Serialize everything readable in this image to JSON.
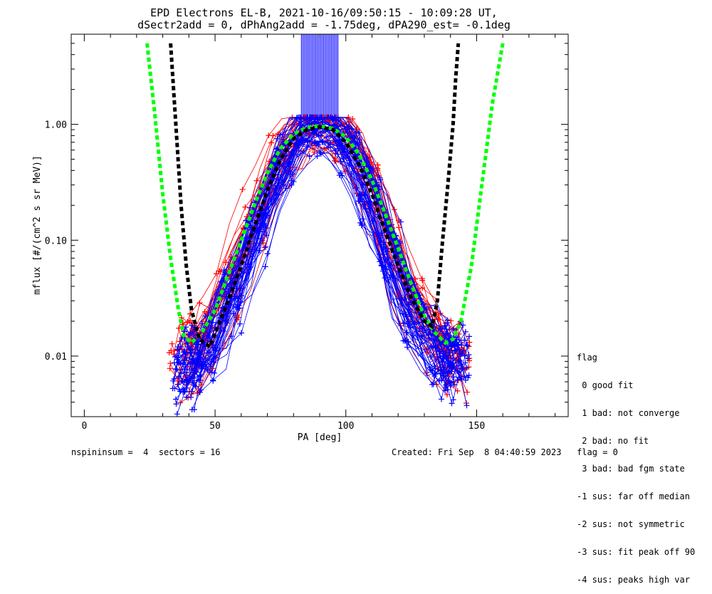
{
  "chart_data": {
    "type": "line",
    "title": "EPD Electrons EL-B, 2021-10-16/09:50:15 - 10:09:28 UT,",
    "subtitle": "dSectr2add = 0, dPhAng2add = -1.75deg, dPA290_est=  -0.1deg",
    "xlabel": "PA [deg]",
    "ylabel": "mflux [#/(cm^2 s sr MeV)]",
    "xlim": [
      -5,
      185
    ],
    "ylim": [
      0.003,
      6
    ],
    "yscale": "log",
    "x_ticks": [
      0,
      50,
      100,
      150
    ],
    "x_tick_labels": [
      "0",
      "50",
      "100",
      "150"
    ],
    "y_ticks": [
      0.01,
      0.1,
      1.0
    ],
    "y_tick_labels": [
      "0.01",
      "0.10",
      "1.00"
    ],
    "series": [
      {
        "name": "model green",
        "color": "#00ff00",
        "style": "dashed",
        "x": [
          24,
          27,
          30,
          33,
          36,
          38,
          41,
          45,
          50,
          55,
          60,
          65,
          70,
          75,
          80,
          85,
          90,
          95,
          100,
          105,
          110,
          115,
          120,
          125,
          130,
          134,
          138,
          141,
          144,
          148,
          152,
          156,
          160
        ],
        "y": [
          5.0,
          1.2,
          0.25,
          0.07,
          0.025,
          0.015,
          0.013,
          0.016,
          0.025,
          0.05,
          0.1,
          0.2,
          0.38,
          0.62,
          0.82,
          0.94,
          0.97,
          0.92,
          0.78,
          0.55,
          0.33,
          0.17,
          0.085,
          0.042,
          0.022,
          0.016,
          0.013,
          0.014,
          0.02,
          0.06,
          0.3,
          1.5,
          5.0
        ]
      },
      {
        "name": "model black",
        "color": "#000000",
        "style": "dashed",
        "x": [
          33,
          35,
          37,
          39,
          41,
          44,
          48,
          55,
          60,
          65,
          70,
          75,
          80,
          85,
          90,
          95,
          100,
          105,
          110,
          115,
          120,
          125,
          130,
          133,
          135,
          137,
          139,
          141,
          142,
          143
        ],
        "y": [
          5.0,
          1.0,
          0.2,
          0.06,
          0.025,
          0.014,
          0.012,
          0.03,
          0.06,
          0.13,
          0.27,
          0.5,
          0.75,
          0.9,
          0.95,
          0.9,
          0.7,
          0.45,
          0.25,
          0.12,
          0.06,
          0.032,
          0.02,
          0.018,
          0.03,
          0.1,
          0.3,
          1.0,
          2.5,
          5.0
        ]
      },
      {
        "name": "red sweeps",
        "color": "#ff0000",
        "style": "solid",
        "x": [
          37,
          40,
          45,
          50,
          55,
          60,
          65,
          70,
          75,
          80,
          84,
          88,
          92,
          96,
          100,
          104,
          108,
          112,
          116,
          120,
          125,
          130,
          135,
          139,
          143
        ],
        "y": [
          0.009,
          0.01,
          0.013,
          0.022,
          0.04,
          0.08,
          0.16,
          0.3,
          0.5,
          0.72,
          0.85,
          0.9,
          0.92,
          0.88,
          0.7,
          0.5,
          0.32,
          0.18,
          0.1,
          0.055,
          0.03,
          0.018,
          0.012,
          0.01,
          0.009
        ]
      },
      {
        "name": "blue sweeps",
        "color": "#0000ff",
        "style": "solid",
        "x": [
          38,
          41,
          46,
          51,
          56,
          61,
          66,
          71,
          76,
          81,
          85,
          89,
          93,
          97,
          101,
          105,
          109,
          113,
          117,
          121,
          126,
          131,
          136,
          140,
          143
        ],
        "y": [
          0.0075,
          0.0085,
          0.011,
          0.017,
          0.032,
          0.06,
          0.12,
          0.24,
          0.45,
          0.75,
          0.95,
          1.0,
          0.95,
          0.85,
          0.62,
          0.42,
          0.25,
          0.14,
          0.075,
          0.04,
          0.022,
          0.014,
          0.011,
          0.0095,
          0.009
        ]
      }
    ],
    "spike_region": {
      "color": "#0000ff",
      "x_start": 83,
      "x_end": 97,
      "y_start": 1.15
    },
    "legend": {
      "title": "flag",
      "entries": [
        " 0 good fit",
        " 1 bad: not converge",
        " 2 bad: no fit",
        " 3 bad: bad fgm state",
        "-1 sus: far off median",
        "-2 sus: not symmetric",
        "-3 sus: fit peak off 90",
        "-4 sus: peaks high var"
      ]
    }
  },
  "footer": {
    "left": "nspininsum =  4  sectors = 16",
    "right": "Created: Fri Sep  8 04:40:59 2023   flag = 0"
  }
}
